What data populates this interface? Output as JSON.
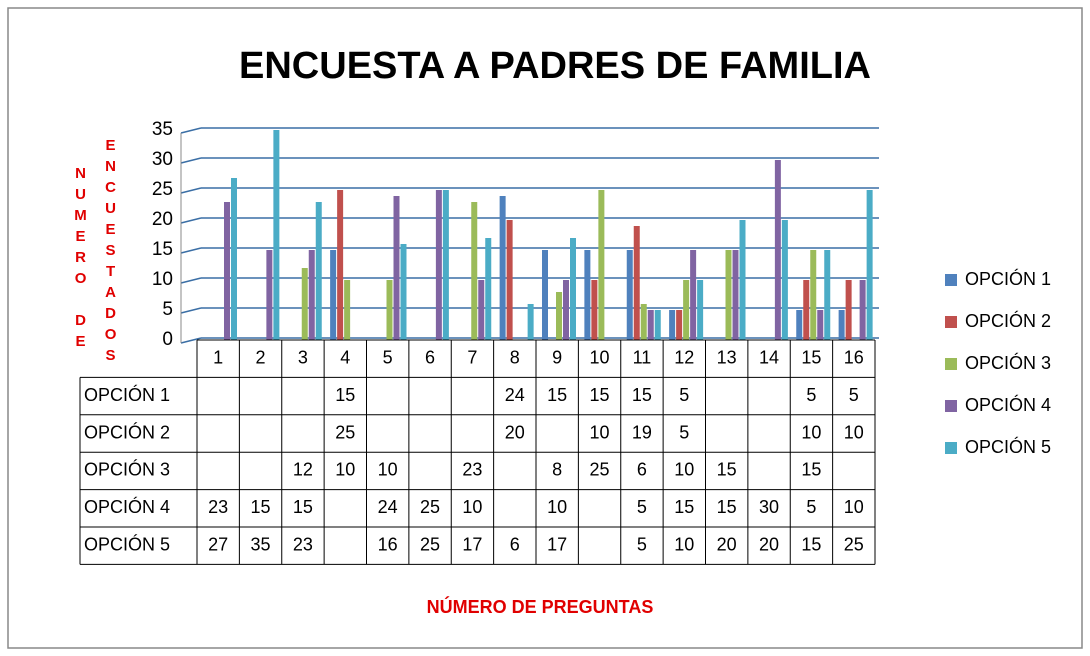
{
  "chart_data": {
    "type": "bar",
    "title": "ENCUESTA A PADRES DE FAMILIA",
    "x_label": "NÚMERO DE PREGUNTAS",
    "y_label": [
      "NUMERO DE",
      "ENCUESTADOS"
    ],
    "categories": [
      "1",
      "2",
      "3",
      "4",
      "5",
      "6",
      "7",
      "8",
      "9",
      "10",
      "11",
      "12",
      "13",
      "14",
      "15",
      "16"
    ],
    "series": [
      {
        "name": "OPCIÓN 1",
        "color": "#4f81bd",
        "values": [
          null,
          null,
          null,
          15,
          null,
          null,
          null,
          24,
          15,
          15,
          15,
          5,
          null,
          null,
          5,
          5
        ]
      },
      {
        "name": "OPCIÓN 2",
        "color": "#c0504d",
        "values": [
          null,
          null,
          null,
          25,
          null,
          null,
          null,
          20,
          null,
          10,
          19,
          5,
          null,
          null,
          10,
          10
        ]
      },
      {
        "name": "OPCIÓN 3",
        "color": "#9bbb59",
        "values": [
          null,
          null,
          12,
          10,
          10,
          null,
          23,
          null,
          8,
          25,
          6,
          10,
          15,
          null,
          15,
          null
        ]
      },
      {
        "name": "OPCIÓN 4",
        "color": "#8064a2",
        "values": [
          23,
          15,
          15,
          null,
          24,
          25,
          10,
          null,
          10,
          null,
          5,
          15,
          15,
          30,
          5,
          10
        ]
      },
      {
        "name": "OPCIÓN 5",
        "color": "#4bacc6",
        "values": [
          27,
          35,
          23,
          null,
          16,
          25,
          17,
          6,
          17,
          null,
          5,
          10,
          20,
          20,
          15,
          25
        ]
      }
    ],
    "ylim": [
      0,
      35
    ],
    "yticks": [
      0,
      5,
      10,
      15,
      20,
      25,
      30,
      35
    ],
    "grid": true,
    "legend": "right",
    "data_table": true
  }
}
